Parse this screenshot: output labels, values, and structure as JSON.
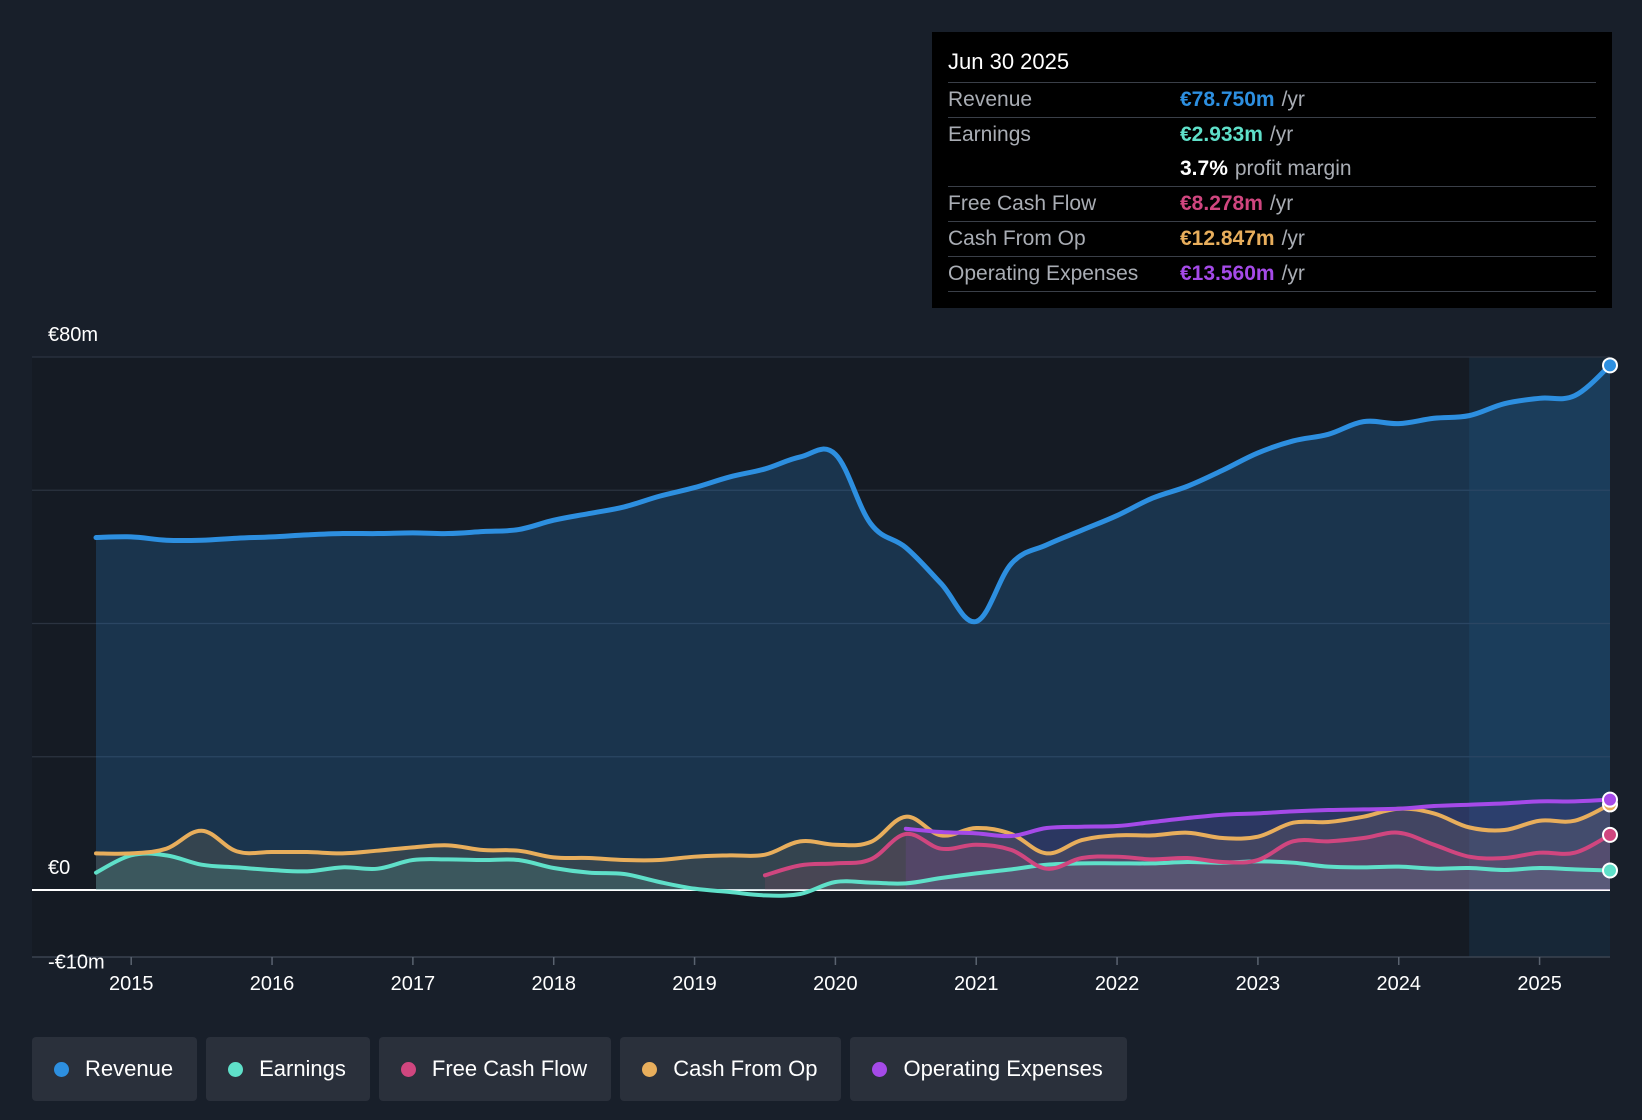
{
  "colors": {
    "revenue": "#2d8fe0",
    "earnings": "#5fe0c9",
    "free_cash_flow": "#d0467f",
    "cash_from_op": "#e8ae5c",
    "operating_expenses": "#a54ae8",
    "background": "#181f2a",
    "plot_background": "#151b24"
  },
  "tooltip": {
    "date": "Jun 30 2025",
    "rows": [
      {
        "name": "Revenue",
        "value": "€78.750m",
        "unit": "/yr",
        "color": "#2d8fe0"
      },
      {
        "name": "Earnings",
        "value": "€2.933m",
        "unit": "/yr",
        "color": "#5fe0c9"
      },
      {
        "name": "",
        "value": "3.7%",
        "unit": "profit margin",
        "color": "#ffffff"
      },
      {
        "name": "Free Cash Flow",
        "value": "€8.278m",
        "unit": "/yr",
        "color": "#d0467f"
      },
      {
        "name": "Cash From Op",
        "value": "€12.847m",
        "unit": "/yr",
        "color": "#e8ae5c"
      },
      {
        "name": "Operating Expenses",
        "value": "€13.560m",
        "unit": "/yr",
        "color": "#a54ae8"
      }
    ]
  },
  "legend": [
    {
      "label": "Revenue",
      "color": "#2d8fe0"
    },
    {
      "label": "Earnings",
      "color": "#5fe0c9"
    },
    {
      "label": "Free Cash Flow",
      "color": "#d0467f"
    },
    {
      "label": "Cash From Op",
      "color": "#e8ae5c"
    },
    {
      "label": "Operating Expenses",
      "color": "#a54ae8"
    }
  ],
  "chart_data": {
    "type": "area",
    "title": "",
    "xlabel": "",
    "ylabel": "",
    "ylim": [
      -10,
      80
    ],
    "xlim": [
      2014.75,
      2025.5
    ],
    "y_tick_labels": [
      {
        "value": 80,
        "label": "€80m"
      },
      {
        "value": 0,
        "label": "€0"
      },
      {
        "value": -10,
        "label": "-€10m"
      }
    ],
    "gridlines": [
      80,
      60,
      40,
      20,
      0
    ],
    "x_ticks": [
      2015,
      2016,
      2017,
      2018,
      2019,
      2020,
      2021,
      2022,
      2023,
      2024,
      2025
    ],
    "x_tick_labels": [
      "2015",
      "2016",
      "2017",
      "2018",
      "2019",
      "2020",
      "2021",
      "2022",
      "2023",
      "2024",
      "2025"
    ],
    "forecast_region_start": 2024.5,
    "series": [
      {
        "name": "Revenue",
        "color": "#2d8fe0",
        "fill": true,
        "x": [
          2014.75,
          2015.0,
          2015.25,
          2015.5,
          2015.75,
          2016.0,
          2016.25,
          2016.5,
          2016.75,
          2017.0,
          2017.25,
          2017.5,
          2017.75,
          2018.0,
          2018.25,
          2018.5,
          2018.75,
          2019.0,
          2019.25,
          2019.5,
          2019.75,
          2020.0,
          2020.25,
          2020.5,
          2020.75,
          2021.0,
          2021.25,
          2021.5,
          2021.75,
          2022.0,
          2022.25,
          2022.5,
          2022.75,
          2023.0,
          2023.25,
          2023.5,
          2023.75,
          2024.0,
          2024.25,
          2024.5,
          2024.75,
          2025.0,
          2025.25,
          2025.5
        ],
        "values": [
          52.9,
          53.0,
          52.5,
          52.5,
          52.8,
          53.0,
          53.3,
          53.5,
          53.5,
          53.6,
          53.5,
          53.8,
          54.1,
          55.5,
          56.5,
          57.5,
          59.1,
          60.4,
          62.0,
          63.2,
          65.0,
          65.4,
          55.0,
          51.4,
          46.0,
          40.3,
          49.0,
          51.8,
          54.0,
          56.2,
          58.8,
          60.6,
          63.0,
          65.6,
          67.4,
          68.4,
          70.3,
          70.0,
          70.8,
          71.2,
          73.0,
          73.8,
          74.2,
          78.75
        ]
      },
      {
        "name": "Earnings",
        "color": "#5fe0c9",
        "fill": true,
        "x": [
          2014.75,
          2015.0,
          2015.25,
          2015.5,
          2015.75,
          2016.0,
          2016.25,
          2016.5,
          2016.75,
          2017.0,
          2017.25,
          2017.5,
          2017.75,
          2018.0,
          2018.25,
          2018.5,
          2018.75,
          2019.0,
          2019.25,
          2019.5,
          2019.75,
          2020.0,
          2020.25,
          2020.5,
          2020.75,
          2021.0,
          2021.25,
          2021.5,
          2021.75,
          2022.0,
          2022.25,
          2022.5,
          2022.75,
          2023.0,
          2023.25,
          2023.5,
          2023.75,
          2024.0,
          2024.25,
          2024.5,
          2024.75,
          2025.0,
          2025.25,
          2025.5
        ],
        "values": [
          2.6,
          5.2,
          5.2,
          3.8,
          3.4,
          3.0,
          2.8,
          3.4,
          3.2,
          4.5,
          4.6,
          4.5,
          4.5,
          3.3,
          2.6,
          2.4,
          1.2,
          0.2,
          -0.3,
          -0.8,
          -0.6,
          1.2,
          1.1,
          1.0,
          1.8,
          2.5,
          3.1,
          3.8,
          4.0,
          4.0,
          4.0,
          4.2,
          4.1,
          4.3,
          4.1,
          3.5,
          3.4,
          3.5,
          3.2,
          3.3,
          3.0,
          3.3,
          3.1,
          2.933
        ]
      },
      {
        "name": "Free Cash Flow",
        "color": "#d0467f",
        "fill": true,
        "x": [
          2019.5,
          2019.75,
          2020.0,
          2020.25,
          2020.5,
          2020.75,
          2021.0,
          2021.25,
          2021.5,
          2021.75,
          2022.0,
          2022.25,
          2022.5,
          2022.75,
          2023.0,
          2023.25,
          2023.5,
          2023.75,
          2024.0,
          2024.25,
          2024.5,
          2024.75,
          2025.0,
          2025.25,
          2025.5
        ],
        "values": [
          2.2,
          3.7,
          4.0,
          4.6,
          8.4,
          6.2,
          6.8,
          6.0,
          3.2,
          4.8,
          5.0,
          4.6,
          4.8,
          4.2,
          4.5,
          7.3,
          7.3,
          7.8,
          8.6,
          6.8,
          5.0,
          4.8,
          5.6,
          5.6,
          8.278
        ]
      },
      {
        "name": "Cash From Op",
        "color": "#e8ae5c",
        "fill": true,
        "x": [
          2014.75,
          2015.0,
          2015.25,
          2015.5,
          2015.75,
          2016.0,
          2016.25,
          2016.5,
          2016.75,
          2017.0,
          2017.25,
          2017.5,
          2017.75,
          2018.0,
          2018.25,
          2018.5,
          2018.75,
          2019.0,
          2019.25,
          2019.5,
          2019.75,
          2020.0,
          2020.25,
          2020.5,
          2020.75,
          2021.0,
          2021.25,
          2021.5,
          2021.75,
          2022.0,
          2022.25,
          2022.5,
          2022.75,
          2023.0,
          2023.25,
          2023.5,
          2023.75,
          2024.0,
          2024.25,
          2024.5,
          2024.75,
          2025.0,
          2025.25,
          2025.5
        ],
        "values": [
          5.5,
          5.5,
          6.2,
          8.9,
          5.8,
          5.7,
          5.7,
          5.5,
          5.9,
          6.4,
          6.7,
          6.0,
          5.9,
          4.9,
          4.8,
          4.5,
          4.5,
          5.0,
          5.2,
          5.3,
          7.3,
          6.8,
          7.2,
          11.0,
          8.2,
          9.3,
          8.4,
          5.5,
          7.5,
          8.2,
          8.2,
          8.6,
          7.8,
          8.0,
          10.1,
          10.2,
          11.0,
          12.2,
          11.5,
          9.4,
          9.0,
          10.4,
          10.4,
          12.847
        ]
      },
      {
        "name": "Operating Expenses",
        "color": "#a54ae8",
        "fill": true,
        "x": [
          2020.5,
          2020.75,
          2021.0,
          2021.25,
          2021.5,
          2021.75,
          2022.0,
          2022.25,
          2022.5,
          2022.75,
          2023.0,
          2023.25,
          2023.5,
          2023.75,
          2024.0,
          2024.25,
          2024.5,
          2024.75,
          2025.0,
          2025.25,
          2025.5
        ],
        "values": [
          9.2,
          8.7,
          8.5,
          8.1,
          9.3,
          9.5,
          9.6,
          10.2,
          10.8,
          11.3,
          11.5,
          11.8,
          12.0,
          12.1,
          12.2,
          12.6,
          12.8,
          13.0,
          13.3,
          13.3,
          13.56
        ]
      }
    ]
  }
}
